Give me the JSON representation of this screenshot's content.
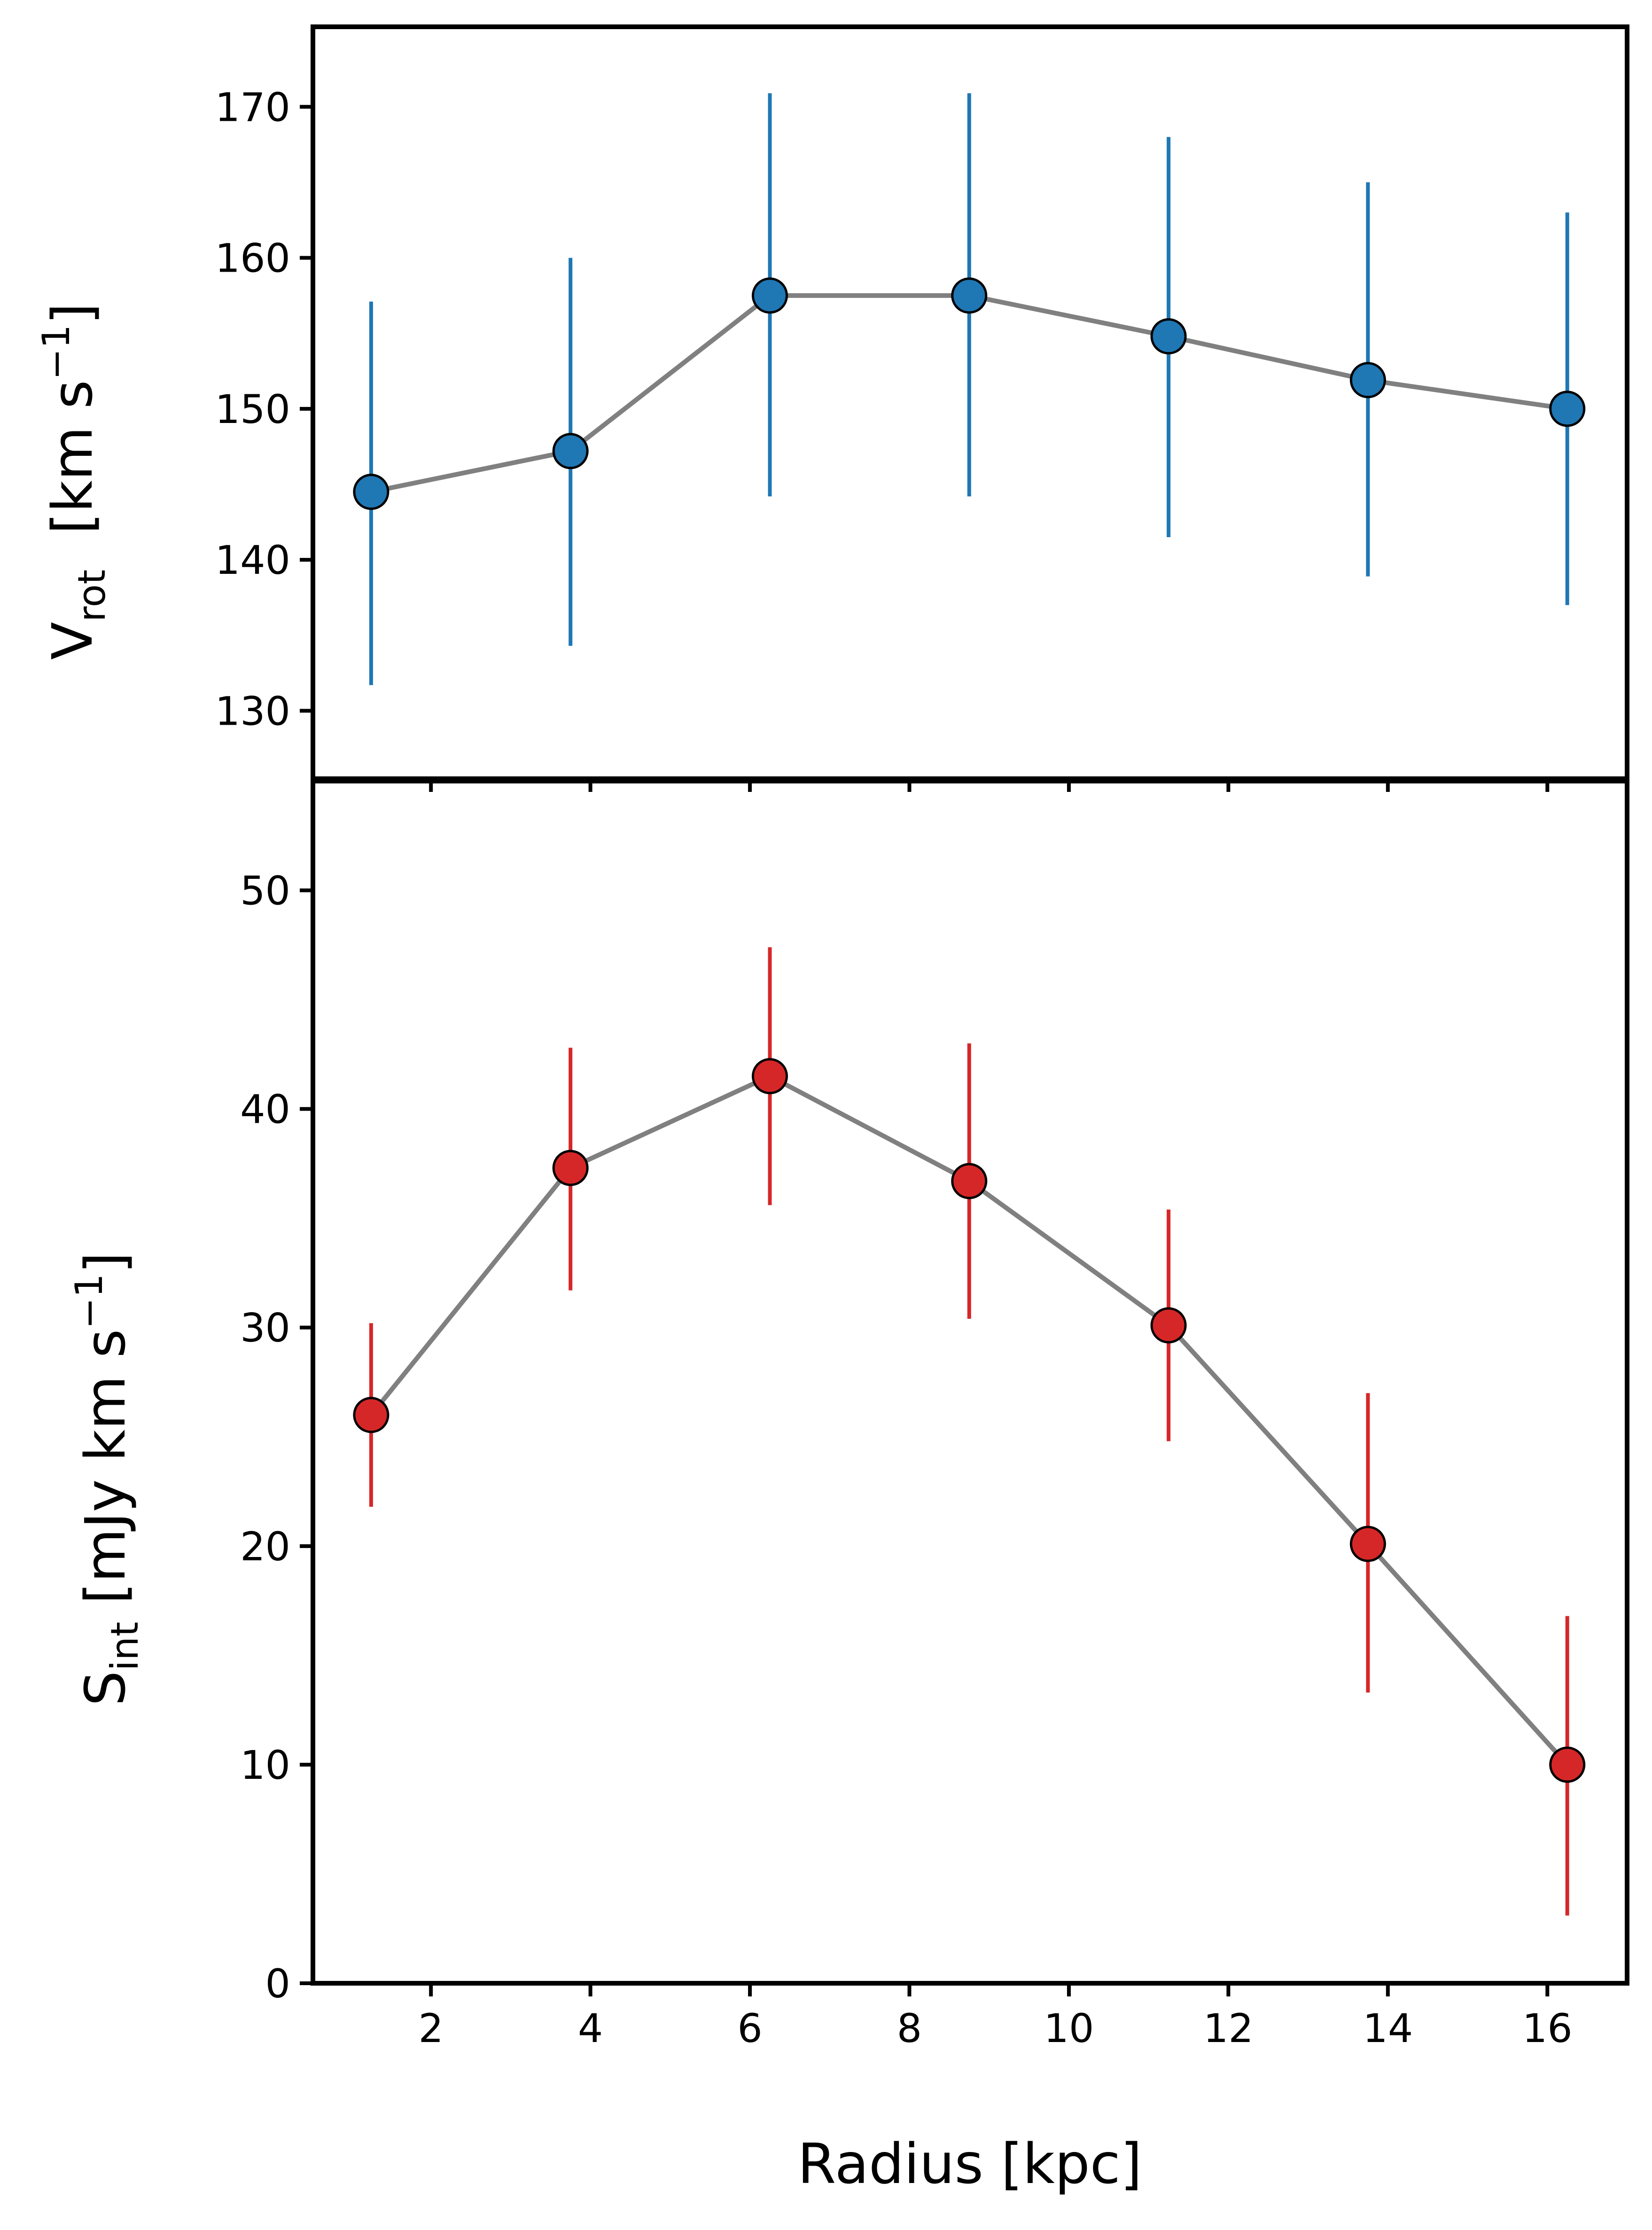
{
  "chart_data": [
    {
      "type": "scatter",
      "panel": "top",
      "ylabel": {
        "main": "V",
        "sub": "rot",
        "unit_prefix": "  [km s",
        "sup": "−1",
        "unit_suffix": "]"
      },
      "xlabel": "",
      "ylim": [
        125.5,
        175.3
      ],
      "yticks": [
        130,
        140,
        150,
        160,
        170
      ],
      "ytick_labels": [
        "130",
        "140",
        "150",
        "160",
        "170"
      ],
      "xlim": [
        0.52,
        17.0
      ],
      "xticks": [
        2,
        4,
        6,
        8,
        10,
        12,
        14,
        16
      ],
      "series": [
        {
          "name": "Vrot",
          "x": [
            1.25,
            3.75,
            6.25,
            8.75,
            11.25,
            13.75,
            16.25
          ],
          "y": [
            144.5,
            147.2,
            157.5,
            157.5,
            154.8,
            151.9,
            150.0
          ],
          "yerr_low": [
            12.8,
            12.9,
            13.3,
            13.3,
            13.3,
            13.0,
            13.0
          ],
          "yerr_high": [
            12.6,
            12.8,
            13.4,
            13.4,
            13.2,
            13.1,
            13.0
          ],
          "marker_color": "#1f77b4",
          "errorbar_color": "#1f77b4",
          "line_color": "#808080"
        }
      ]
    },
    {
      "type": "scatter",
      "panel": "bottom",
      "ylabel": {
        "main": "S",
        "sub": "int",
        "unit_prefix": " [mJy km s",
        "sup": "−1",
        "unit_suffix": "]"
      },
      "xlabel": "Radius [kpc]",
      "ylim": [
        0,
        55
      ],
      "yticks": [
        0,
        10,
        20,
        30,
        40,
        50
      ],
      "ytick_labels": [
        "0",
        "10",
        "20",
        "30",
        "40",
        "50"
      ],
      "xlim": [
        0.52,
        17.0
      ],
      "xticks": [
        2,
        4,
        6,
        8,
        10,
        12,
        14,
        16
      ],
      "xtick_labels": [
        "2",
        "4",
        "6",
        "8",
        "10",
        "12",
        "14",
        "16"
      ],
      "series": [
        {
          "name": "Sint",
          "x": [
            1.25,
            3.75,
            6.25,
            8.75,
            11.25,
            13.75,
            16.25
          ],
          "y": [
            26.0,
            37.3,
            41.5,
            36.7,
            30.1,
            20.1,
            10.0
          ],
          "yerr_low": [
            4.2,
            5.6,
            5.9,
            6.3,
            5.3,
            6.8,
            6.9
          ],
          "yerr_high": [
            4.2,
            5.5,
            5.9,
            6.3,
            5.3,
            6.9,
            6.8
          ],
          "marker_color": "#d62728",
          "errorbar_color": "#d62728",
          "line_color": "#808080"
        }
      ]
    }
  ]
}
